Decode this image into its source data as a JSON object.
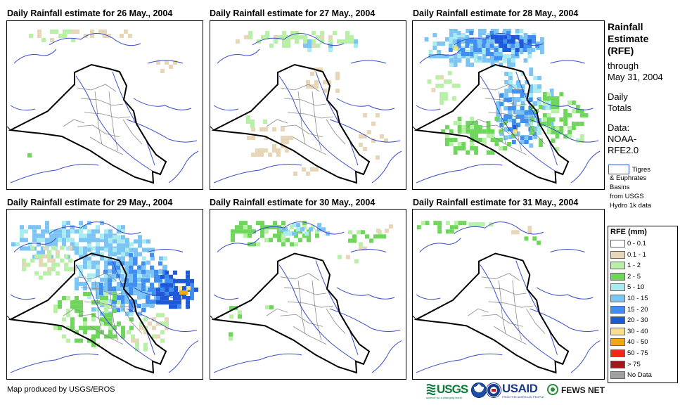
{
  "panels": [
    {
      "title": "Daily Rainfall estimate for 26 May., 2004"
    },
    {
      "title": "Daily Rainfall estimate for 27 May., 2004"
    },
    {
      "title": "Daily Rainfall estimate for 28 May., 2004"
    },
    {
      "title": "Daily Rainfall estimate for 29 May., 2004"
    },
    {
      "title": "Daily Rainfall estimate for 30 May., 2004"
    },
    {
      "title": "Daily Rainfall estimate for 31 May., 2004"
    }
  ],
  "side": {
    "title_lines": [
      "Rainfall",
      "Estimate",
      "(RFE)"
    ],
    "through_lines": [
      "through",
      "May 31, 2004"
    ],
    "totals_lines": [
      "Daily",
      "Totals"
    ],
    "data_lines": [
      "Data:",
      "NOAA-",
      "RFE2.0"
    ],
    "basin_lines": [
      "Tigres",
      "& Euphrates",
      "Basins",
      "from USGS",
      "Hydro 1k data"
    ]
  },
  "legend": {
    "title": "RFE (mm)",
    "items": [
      {
        "label": "0 - 0.1",
        "color": "#ffffff"
      },
      {
        "label": "0.1 - 1",
        "color": "#e8d6b8"
      },
      {
        "label": "1 - 2",
        "color": "#b8f0a8"
      },
      {
        "label": "2 - 5",
        "color": "#6ed65a"
      },
      {
        "label": "5 - 10",
        "color": "#a8ecf0"
      },
      {
        "label": "10 - 15",
        "color": "#7cc4f4"
      },
      {
        "label": "15 - 20",
        "color": "#3f8ef0"
      },
      {
        "label": "20 - 30",
        "color": "#1e5ad8"
      },
      {
        "label": "30 - 40",
        "color": "#f8e08a"
      },
      {
        "label": "40 - 50",
        "color": "#f8a418"
      },
      {
        "label": "50 - 75",
        "color": "#f02a10"
      },
      {
        "label": "> 75",
        "color": "#a01818"
      },
      {
        "label": "No Data",
        "color": "#a0a0a0"
      }
    ]
  },
  "footer": {
    "credit": "Map produced by USGS/EROS",
    "logos": [
      "USGS",
      "USAID",
      "FEWS NET"
    ],
    "usgs_tagline": "science for a changing world",
    "usaid_tagline": "FROM THE AMERICAN PEOPLE"
  },
  "colors": {
    "border": "#000000",
    "rivers": "#3a4fc8",
    "provinces": "#8a8a8a"
  }
}
